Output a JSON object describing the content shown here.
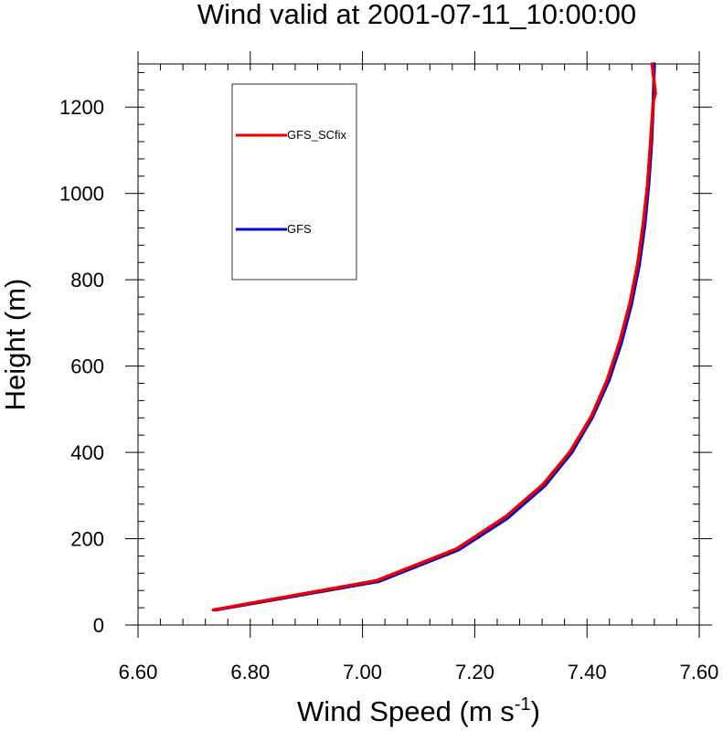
{
  "chart_data": {
    "type": "line",
    "title": "Wind valid at 2001-07-11_10:00:00",
    "xlabel": {
      "text": "Wind Speed (m s",
      "sup": "-1",
      "suffix": ")"
    },
    "ylabel": "Height (m)",
    "xlim": [
      6.6,
      7.6
    ],
    "ylim": [
      0,
      1300
    ],
    "xticks": [
      6.6,
      6.8,
      7.0,
      7.2,
      7.4,
      7.6
    ],
    "xtick_labels": [
      "6.60",
      "6.80",
      "7.00",
      "7.20",
      "7.40",
      "7.60"
    ],
    "yticks": [
      0,
      200,
      400,
      600,
      800,
      1000,
      1200
    ],
    "ytick_labels": [
      "0",
      "200",
      "400",
      "600",
      "800",
      "1000",
      "1200"
    ],
    "x_minor_step": 0.04,
    "y_minor_step": 40,
    "grid": false,
    "legend": {
      "placement": "top-left"
    },
    "series": [
      {
        "name": "GFS_SCfix",
        "color": "#ee0000",
        "points": [
          [
            6.734,
            35
          ],
          [
            7.025,
            103
          ],
          [
            7.167,
            176
          ],
          [
            7.254,
            250
          ],
          [
            7.322,
            326
          ],
          [
            7.37,
            402
          ],
          [
            7.408,
            484
          ],
          [
            7.436,
            568
          ],
          [
            7.458,
            655
          ],
          [
            7.476,
            744
          ],
          [
            7.49,
            835
          ],
          [
            7.5,
            928
          ],
          [
            7.508,
            1022
          ],
          [
            7.513,
            1117
          ],
          [
            7.518,
            1213
          ],
          [
            7.522,
            1232
          ],
          [
            7.516,
            1300
          ]
        ]
      },
      {
        "name": "GFS",
        "color": "#0000cc",
        "points": [
          [
            6.738,
            35
          ],
          [
            7.029,
            101
          ],
          [
            7.171,
            174
          ],
          [
            7.258,
            247
          ],
          [
            7.325,
            323
          ],
          [
            7.373,
            400
          ],
          [
            7.41,
            482
          ],
          [
            7.439,
            566
          ],
          [
            7.461,
            653
          ],
          [
            7.479,
            742
          ],
          [
            7.493,
            833
          ],
          [
            7.503,
            926
          ],
          [
            7.51,
            1020
          ],
          [
            7.515,
            1115
          ],
          [
            7.518,
            1205
          ],
          [
            7.519,
            1260
          ],
          [
            7.52,
            1300
          ]
        ]
      }
    ]
  }
}
